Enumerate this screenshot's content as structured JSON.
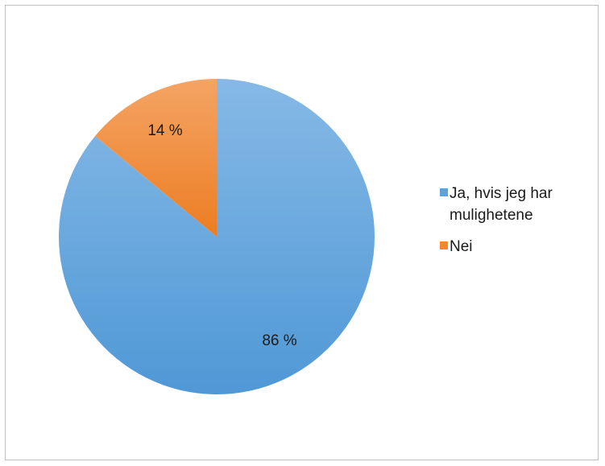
{
  "chart_data": {
    "type": "pie",
    "title": "",
    "slices": [
      {
        "label": "Ja, hvis jeg har mulighetene",
        "value": 86,
        "data_label": "86 %",
        "color": "#5ba3dc"
      },
      {
        "label": "Nei",
        "value": 14,
        "data_label": "14 %",
        "color": "#f08a2c"
      }
    ],
    "legend_position": "right"
  }
}
